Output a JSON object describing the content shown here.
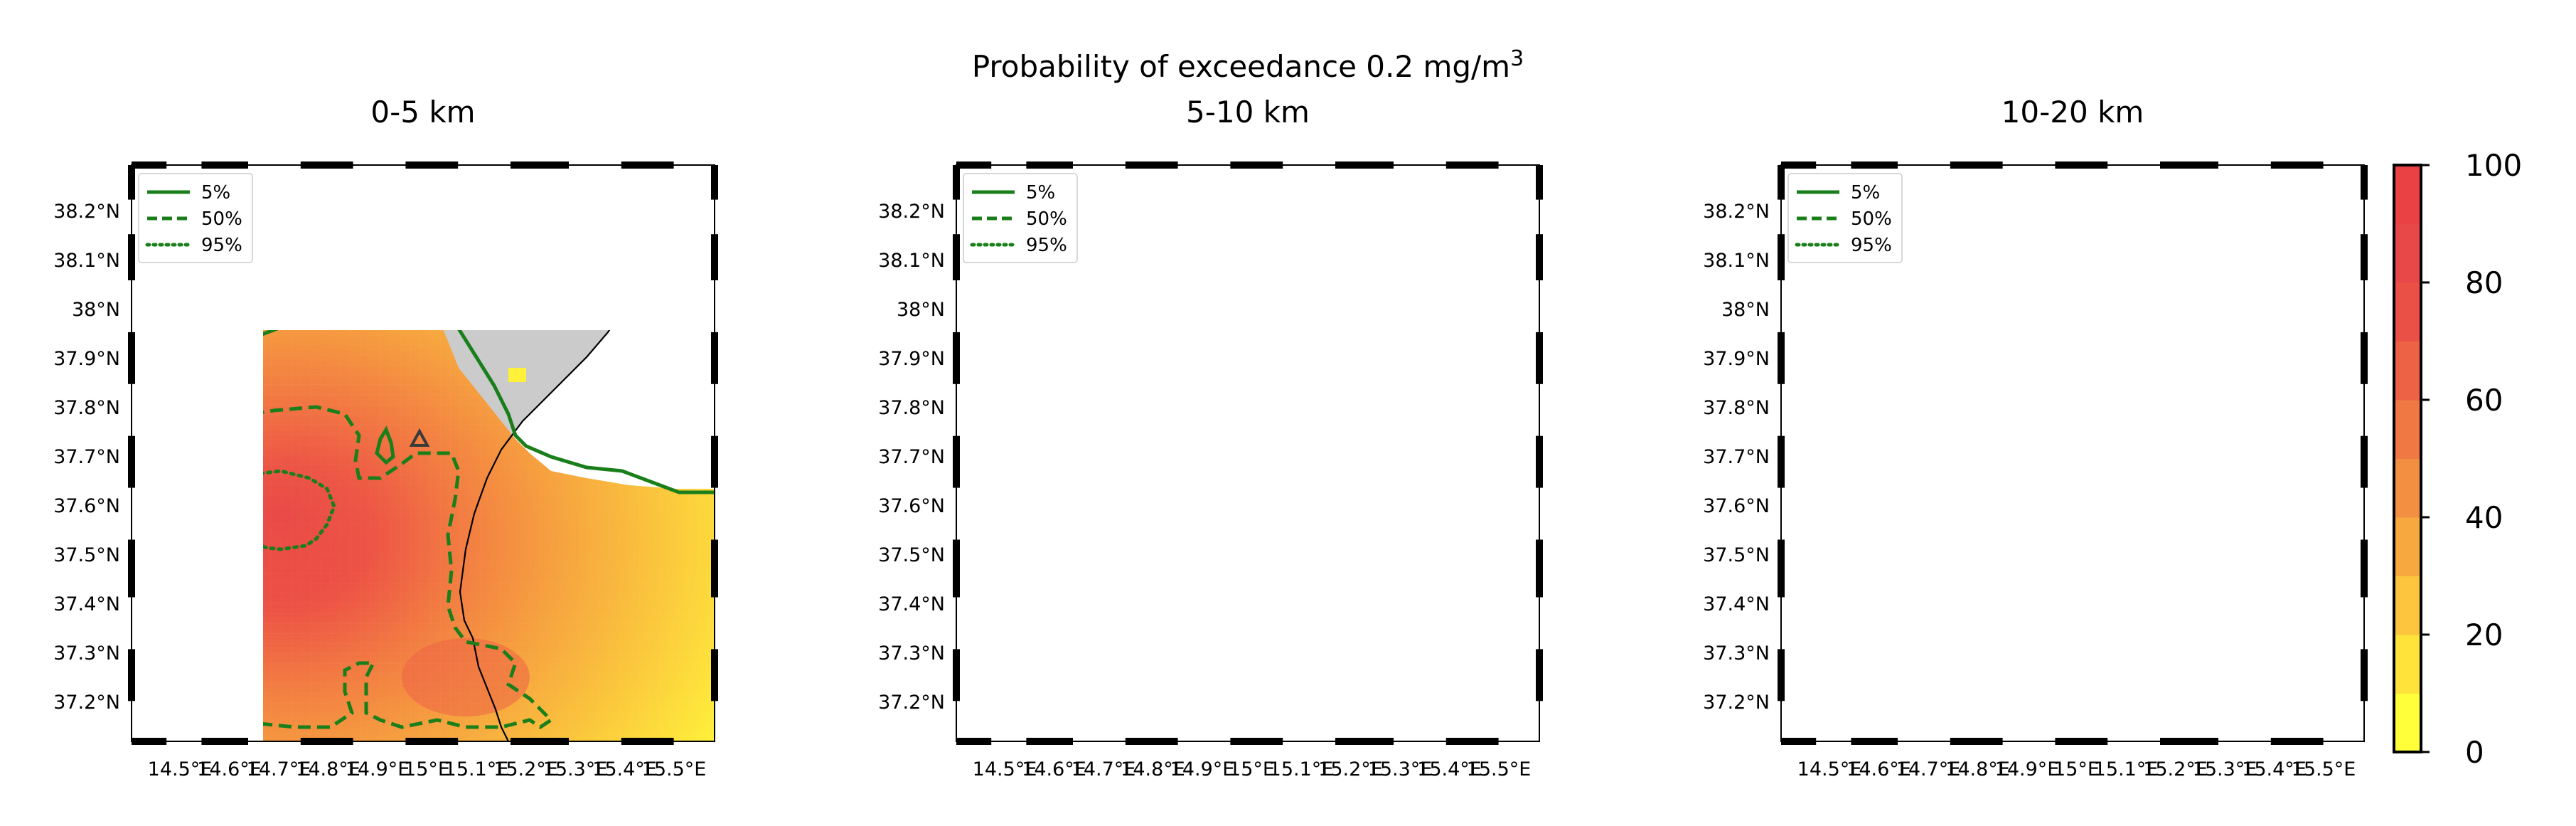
{
  "figure": {
    "suptitle": "Probability of exceedance 0.2 mg/m",
    "suptitle_sup": "3"
  },
  "panels": [
    {
      "title": "0-5 km",
      "has_field": true
    },
    {
      "title": "5-10 km",
      "has_field": false
    },
    {
      "title": "10-20 km",
      "has_field": false
    }
  ],
  "legend": [
    {
      "label": "5%",
      "style": "solid"
    },
    {
      "label": "50%",
      "style": "dashed"
    },
    {
      "label": "95%",
      "style": "dotted"
    }
  ],
  "lat_ticks": [
    "38.2°N",
    "38.1°N",
    "38°N",
    "37.9°N",
    "37.8°N",
    "37.7°N",
    "37.6°N",
    "37.5°N",
    "37.4°N",
    "37.3°N",
    "37.2°N"
  ],
  "lon_ticks": [
    "14.5°E",
    "14.6°E",
    "14.7°E",
    "14.8°E",
    "14.9°E",
    "15°E",
    "15.1°E",
    "15.2°E",
    "15.3°E",
    "15.4°E",
    "15.5°E"
  ],
  "colorbar": {
    "ticks": [
      "0",
      "20",
      "40",
      "60",
      "80",
      "100"
    ],
    "min": 0,
    "max": 100,
    "colors": [
      "#ffff3a",
      "#ffe33b",
      "#fcc53d",
      "#f7a93f",
      "#f38f41",
      "#f07843",
      "#ed6245",
      "#eb5046",
      "#e94848",
      "#ea4244"
    ]
  },
  "colors": {
    "land": "#cbcbcb",
    "coast": "#000000",
    "contour": "#1a7f1a",
    "vent_marker": "#3a3a3a"
  }
}
